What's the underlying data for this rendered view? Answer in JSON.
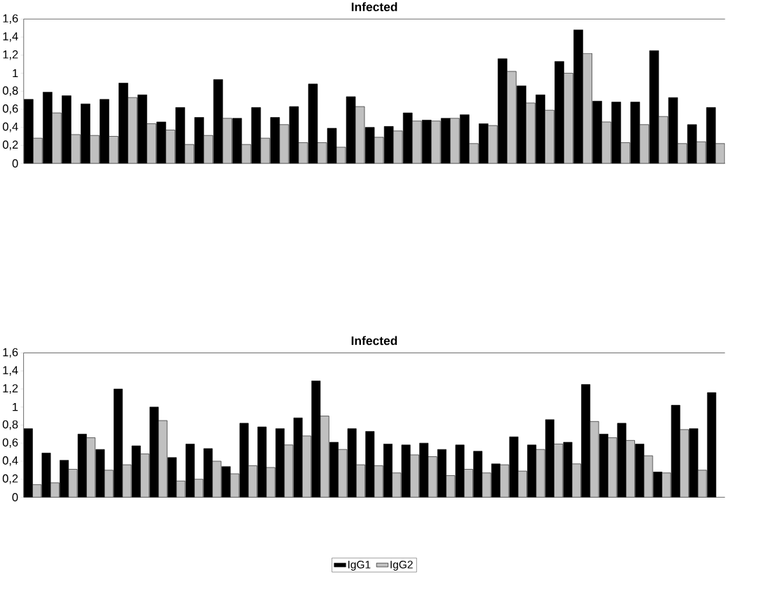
{
  "chart_data": [
    {
      "type": "bar",
      "title": "Infected",
      "categories": [
        null,
        null,
        null,
        null,
        null,
        null,
        null,
        null,
        null,
        null,
        null,
        null,
        null,
        null,
        null,
        null,
        null,
        null,
        null,
        null,
        null,
        null,
        null,
        null,
        null,
        null,
        null,
        null,
        null,
        null,
        null,
        null,
        null,
        null,
        null,
        null,
        null
      ],
      "series": [
        {
          "color": "#000000",
          "values": [
            0.71,
            0.79,
            0.75,
            0.66,
            0.71,
            0.89,
            0.76,
            0.46,
            0.62,
            0.51,
            0.93,
            0.5,
            0.62,
            0.51,
            0.63,
            0.88,
            0.39,
            0.74,
            0.4,
            0.41,
            0.56,
            0.48,
            0.5,
            0.54,
            0.44,
            1.16,
            0.86,
            0.76,
            1.13,
            1.48,
            0.69,
            0.68,
            0.68,
            1.25,
            0.73,
            0.43,
            0.62
          ]
        },
        {
          "color": "#c0c0c0",
          "values": [
            0.28,
            0.56,
            0.32,
            0.31,
            0.3,
            0.73,
            0.44,
            0.37,
            0.21,
            0.31,
            0.5,
            0.21,
            0.28,
            0.43,
            0.23,
            0.23,
            0.18,
            0.63,
            0.29,
            0.36,
            0.47,
            0.47,
            0.5,
            0.22,
            0.42,
            1.02,
            0.67,
            0.59,
            1.0,
            1.22,
            0.46,
            0.23,
            0.43,
            0.52,
            0.22,
            0.24,
            0.22
          ]
        }
      ],
      "ylim": [
        0,
        1.6
      ],
      "yticks": [
        0,
        {
          "value": 0.2,
          "label": "0,2"
        },
        {
          "value": 0.4,
          "label": "0,4"
        },
        {
          "value": 0.6,
          "label": "0,6"
        },
        {
          "value": 0.8,
          "label": "0,8"
        },
        1,
        {
          "value": 1.2,
          "label": "1,2"
        },
        {
          "value": 1.4,
          "label": "1,4"
        },
        {
          "value": 1.6,
          "label": "1,6"
        }
      ],
      "tick_labels": "y",
      "grid": false,
      "legend": false
    },
    {
      "type": "bar",
      "title": "Infected",
      "categories": [
        null,
        null,
        null,
        null,
        null,
        null,
        null,
        null,
        null,
        null,
        null,
        null,
        null,
        null,
        null,
        null,
        null,
        null,
        null,
        null,
        null,
        null,
        null,
        null,
        null,
        null,
        null,
        null,
        null,
        null,
        null,
        null,
        null,
        null,
        null,
        null,
        null,
        null,
        null
      ],
      "series": [
        {
          "name": "IgG1",
          "color": "#000000",
          "values": [
            0.76,
            0.49,
            0.41,
            0.7,
            0.53,
            1.2,
            0.57,
            1.0,
            0.44,
            0.59,
            0.54,
            0.34,
            0.82,
            0.78,
            0.76,
            0.88,
            1.29,
            0.61,
            0.76,
            0.73,
            0.59,
            0.58,
            0.6,
            0.53,
            0.58,
            0.51,
            0.37,
            0.67,
            0.58,
            0.86,
            0.61,
            1.25,
            0.7,
            0.82,
            0.59,
            0.28,
            1.02,
            0.76,
            1.16
          ]
        },
        {
          "name": "IgG2",
          "color": "#c0c0c0",
          "values": [
            0.14,
            0.16,
            0.31,
            0.66,
            0.3,
            0.36,
            0.48,
            0.85,
            0.18,
            0.2,
            0.4,
            0.26,
            0.35,
            0.33,
            0.58,
            0.68,
            0.9,
            0.53,
            0.36,
            0.35,
            0.27,
            0.47,
            0.45,
            0.24,
            0.31,
            0.27,
            0.36,
            0.29,
            0.53,
            0.59,
            0.37,
            0.84,
            0.66,
            0.63,
            0.46,
            0.27,
            0.75,
            0.3,
            null
          ]
        }
      ],
      "ylim": [
        0,
        1.6
      ],
      "yticks": [
        0,
        {
          "value": 0.2,
          "label": "0,2"
        },
        {
          "value": 0.4,
          "label": "0,4"
        },
        {
          "value": 0.6,
          "label": "0,6"
        },
        {
          "value": 0.8,
          "label": "0,8"
        },
        1,
        {
          "value": 1.2,
          "label": "1,2"
        },
        {
          "value": 1.4,
          "label": "1,4"
        },
        {
          "value": 1.6,
          "label": "1,6"
        }
      ],
      "tick_labels": "y",
      "grid": false,
      "legend": "bottom"
    }
  ]
}
